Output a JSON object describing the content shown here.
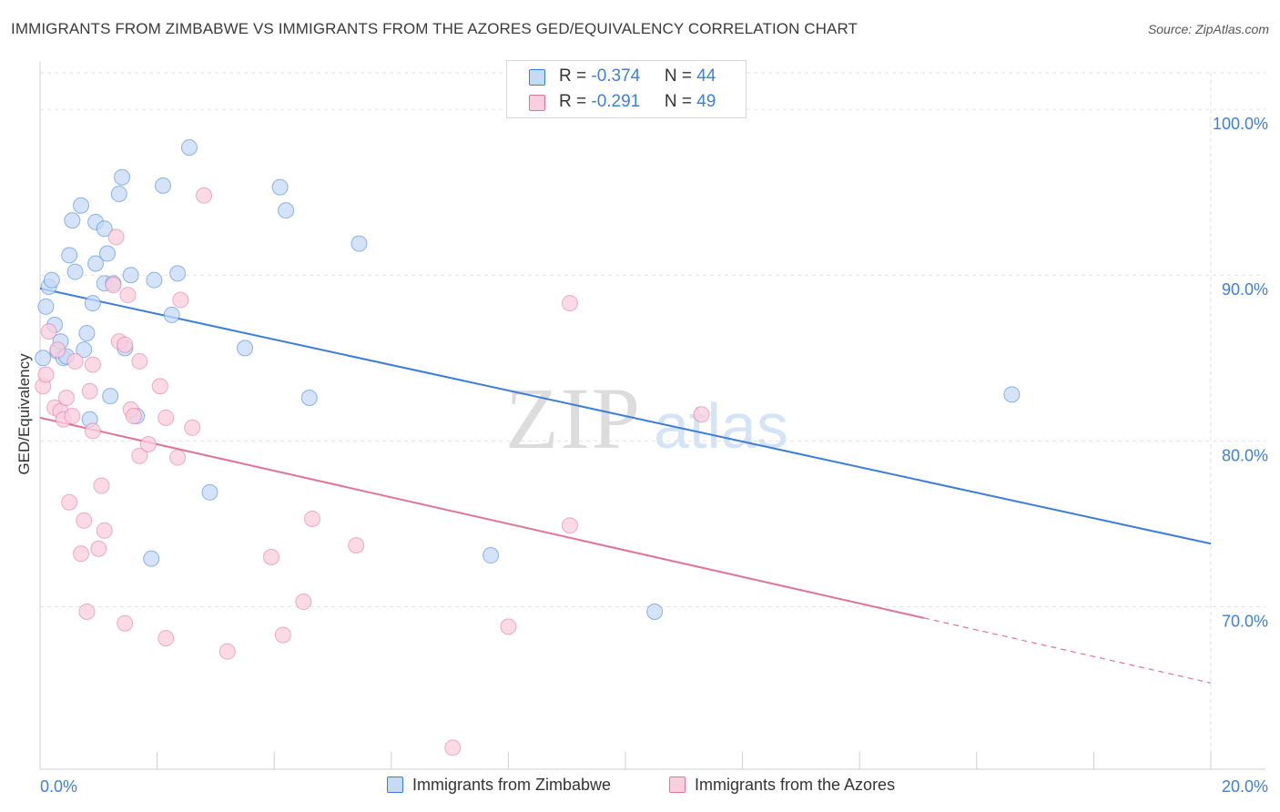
{
  "title": "IMMIGRANTS FROM ZIMBABWE VS IMMIGRANTS FROM THE AZORES GED/EQUIVALENCY CORRELATION CHART",
  "source": "Source: ZipAtlas.com",
  "watermark": {
    "zip": "ZIP",
    "atlas": "atlas"
  },
  "legend_top": {
    "zimbabwe": {
      "r_label": "R = ",
      "r_value": "-0.374",
      "n_label": "N = ",
      "n_value": "44"
    },
    "azores": {
      "r_label": "R = ",
      "r_value": "-0.291",
      "n_label": "N = ",
      "n_value": "49"
    }
  },
  "chart_data": {
    "type": "scatter",
    "title": "IMMIGRANTS FROM ZIMBABWE VS IMMIGRANTS FROM THE AZORES GED/EQUIVALENCY CORRELATION CHART",
    "xlabel": "",
    "ylabel": "GED/Equivalency",
    "xlim": [
      0,
      20
    ],
    "ylim": [
      60.2,
      102.2
    ],
    "x_tick_labels": [
      "0.0%",
      "20.0%"
    ],
    "y_ticks": [
      70,
      80,
      90,
      100
    ],
    "y_tick_labels": [
      "70.0%",
      "80.0%",
      "90.0%",
      "100.0%"
    ],
    "grid": true,
    "legend_position": "bottom-center",
    "colors": {
      "zimbabwe": "#3b7dd8",
      "azores": "#e0739a",
      "zimbabwe_fill": "#c6daf5",
      "azores_fill": "#f9cedd"
    },
    "series": [
      {
        "name": "Immigrants from Zimbabwe",
        "color": "#3b7dd8",
        "fill": "#c6daf5",
        "points": [
          [
            0.05,
            85.0
          ],
          [
            0.1,
            88.1
          ],
          [
            0.15,
            89.3
          ],
          [
            0.2,
            89.7
          ],
          [
            0.25,
            87.0
          ],
          [
            0.3,
            85.4
          ],
          [
            0.35,
            86.0
          ],
          [
            0.4,
            85.0
          ],
          [
            0.45,
            85.1
          ],
          [
            0.5,
            91.2
          ],
          [
            0.55,
            93.3
          ],
          [
            0.6,
            90.2
          ],
          [
            0.7,
            94.2
          ],
          [
            0.75,
            85.5
          ],
          [
            0.8,
            86.5
          ],
          [
            0.85,
            81.3
          ],
          [
            0.9,
            88.3
          ],
          [
            0.95,
            90.7
          ],
          [
            0.95,
            93.2
          ],
          [
            1.1,
            89.5
          ],
          [
            1.1,
            92.8
          ],
          [
            1.15,
            91.3
          ],
          [
            1.2,
            82.7
          ],
          [
            1.25,
            89.5
          ],
          [
            1.35,
            94.9
          ],
          [
            1.4,
            95.9
          ],
          [
            1.45,
            85.6
          ],
          [
            1.55,
            90.0
          ],
          [
            1.65,
            81.5
          ],
          [
            1.9,
            72.9
          ],
          [
            1.95,
            89.7
          ],
          [
            2.1,
            95.4
          ],
          [
            2.25,
            87.6
          ],
          [
            2.35,
            90.1
          ],
          [
            2.55,
            97.7
          ],
          [
            2.9,
            76.9
          ],
          [
            3.5,
            85.6
          ],
          [
            4.1,
            95.3
          ],
          [
            4.2,
            93.9
          ],
          [
            4.6,
            82.6
          ],
          [
            5.45,
            91.9
          ],
          [
            7.7,
            73.1
          ],
          [
            10.5,
            69.7
          ],
          [
            16.6,
            82.8
          ]
        ]
      },
      {
        "name": "Immigrants from the Azores",
        "color": "#e0739a",
        "fill": "#f9cedd",
        "points": [
          [
            0.05,
            83.3
          ],
          [
            0.1,
            84.0
          ],
          [
            0.15,
            86.6
          ],
          [
            0.25,
            82.0
          ],
          [
            0.3,
            85.5
          ],
          [
            0.35,
            81.8
          ],
          [
            0.4,
            81.3
          ],
          [
            0.45,
            82.6
          ],
          [
            0.5,
            76.3
          ],
          [
            0.55,
            81.5
          ],
          [
            0.6,
            84.8
          ],
          [
            0.7,
            73.2
          ],
          [
            0.75,
            75.2
          ],
          [
            0.8,
            69.7
          ],
          [
            0.85,
            83.0
          ],
          [
            0.9,
            84.6
          ],
          [
            0.9,
            80.6
          ],
          [
            1.0,
            73.5
          ],
          [
            1.05,
            77.3
          ],
          [
            1.1,
            74.6
          ],
          [
            1.25,
            89.4
          ],
          [
            1.3,
            92.3
          ],
          [
            1.35,
            86.0
          ],
          [
            1.45,
            85.8
          ],
          [
            1.45,
            69.0
          ],
          [
            1.5,
            88.8
          ],
          [
            1.55,
            81.9
          ],
          [
            1.6,
            81.5
          ],
          [
            1.7,
            84.8
          ],
          [
            1.7,
            79.1
          ],
          [
            1.85,
            79.8
          ],
          [
            2.05,
            83.3
          ],
          [
            2.15,
            81.4
          ],
          [
            2.15,
            68.1
          ],
          [
            2.35,
            79.0
          ],
          [
            2.4,
            88.5
          ],
          [
            2.6,
            80.8
          ],
          [
            2.8,
            94.8
          ],
          [
            3.2,
            67.3
          ],
          [
            3.95,
            73.0
          ],
          [
            4.15,
            68.3
          ],
          [
            4.5,
            70.3
          ],
          [
            4.65,
            75.3
          ],
          [
            5.4,
            73.7
          ],
          [
            7.05,
            61.5
          ],
          [
            8.0,
            68.8
          ],
          [
            9.05,
            88.3
          ],
          [
            9.05,
            74.9
          ],
          [
            11.3,
            81.6
          ]
        ]
      }
    ],
    "trendlines": [
      {
        "series": "Immigrants from Zimbabwe",
        "x0": 0,
        "y0": 89.2,
        "x1": 20,
        "y1": 73.8,
        "solid_until": 20
      },
      {
        "series": "Immigrants from the Azores",
        "x0": 0,
        "y0": 81.4,
        "x1": 20,
        "y1": 65.4,
        "solid_until": 15.1
      }
    ]
  }
}
